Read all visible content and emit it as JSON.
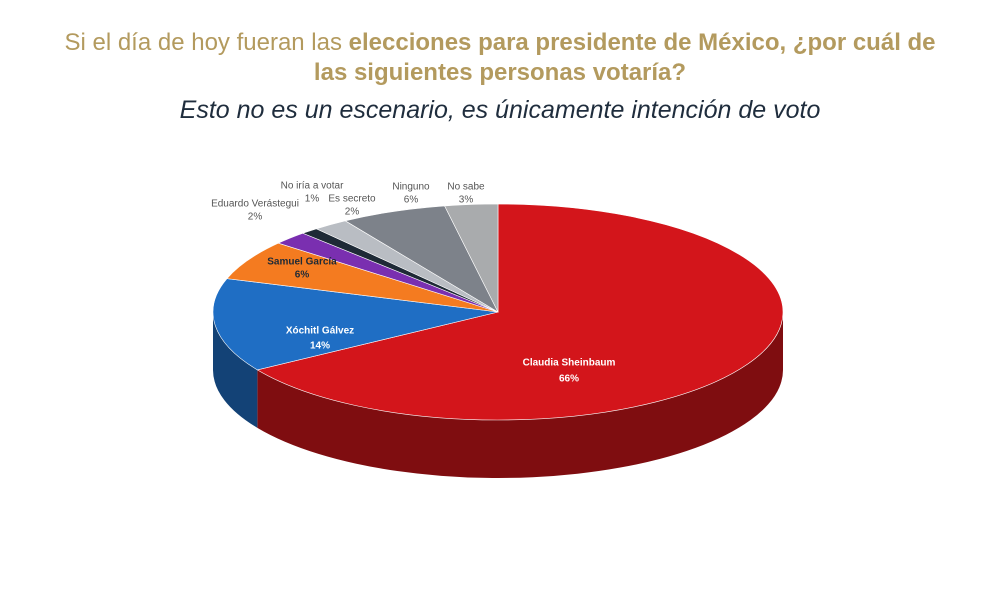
{
  "chart_data": {
    "type": "pie",
    "title_plain": "Si el día de hoy fueran las",
    "title_bold": "elecciones para presidente de México, ¿por cuál de las siguientes personas votaría?",
    "subtitle": "Esto no es un escenario, es únicamente intención de voto",
    "categories": [
      "Claudia Sheinbaum",
      "Xóchitl Gálvez",
      "Samuel García",
      "Eduardo Verástegui",
      "No iría a votar",
      "Es secreto",
      "Ninguno",
      "No sabe"
    ],
    "values": [
      66,
      14,
      6,
      2,
      1,
      2,
      6,
      3
    ],
    "value_labels": [
      "66%",
      "14%",
      "6%",
      "2%",
      "1%",
      "2%",
      "6%",
      "3%"
    ],
    "colors": [
      "#d3151b",
      "#1f6ec4",
      "#f47b20",
      "#7a2fb0",
      "#1e2a36",
      "#b9bdc3",
      "#7d828a",
      "#a9abad"
    ]
  }
}
